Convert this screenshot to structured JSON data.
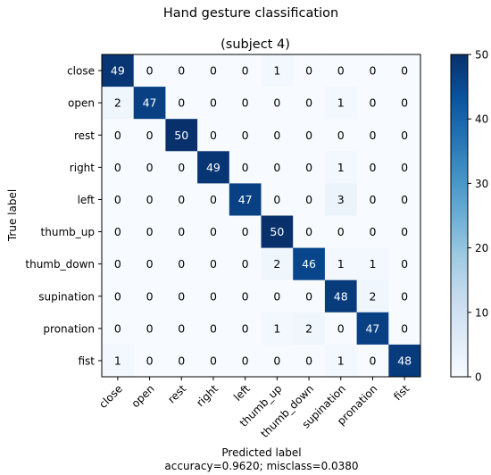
{
  "chart_data": {
    "type": "heatmap",
    "title": "Hand gesture classification",
    "subtitle": "(subject 4)",
    "xlabel": "Predicted label",
    "xlabel_note": "accuracy=0.9620; misclass=0.0380",
    "ylabel": "True label",
    "row_labels": [
      "close",
      "open",
      "rest",
      "right",
      "left",
      "thumb_up",
      "thumb_down",
      "supination",
      "pronation",
      "fist"
    ],
    "col_labels": [
      "close",
      "open",
      "rest",
      "right",
      "left",
      "thumb_up",
      "thumb_down",
      "supination",
      "pronation",
      "fist"
    ],
    "values": [
      [
        49,
        0,
        0,
        0,
        0,
        1,
        0,
        0,
        0,
        0
      ],
      [
        2,
        47,
        0,
        0,
        0,
        0,
        0,
        1,
        0,
        0
      ],
      [
        0,
        0,
        50,
        0,
        0,
        0,
        0,
        0,
        0,
        0
      ],
      [
        0,
        0,
        0,
        49,
        0,
        0,
        0,
        1,
        0,
        0
      ],
      [
        0,
        0,
        0,
        0,
        47,
        0,
        0,
        3,
        0,
        0
      ],
      [
        0,
        0,
        0,
        0,
        0,
        50,
        0,
        0,
        0,
        0
      ],
      [
        0,
        0,
        0,
        0,
        0,
        2,
        46,
        1,
        1,
        0
      ],
      [
        0,
        0,
        0,
        0,
        0,
        0,
        0,
        48,
        2,
        0
      ],
      [
        0,
        0,
        0,
        0,
        0,
        1,
        2,
        0,
        47,
        0
      ],
      [
        1,
        0,
        0,
        0,
        0,
        0,
        0,
        1,
        0,
        48
      ]
    ],
    "colormap": "Blues",
    "vmin": 0,
    "vmax": 50,
    "colorbar_ticks": [
      0,
      10,
      20,
      30,
      40,
      50
    ],
    "text_colors": {
      "light": "#ffffff",
      "dark": "#000000"
    }
  }
}
